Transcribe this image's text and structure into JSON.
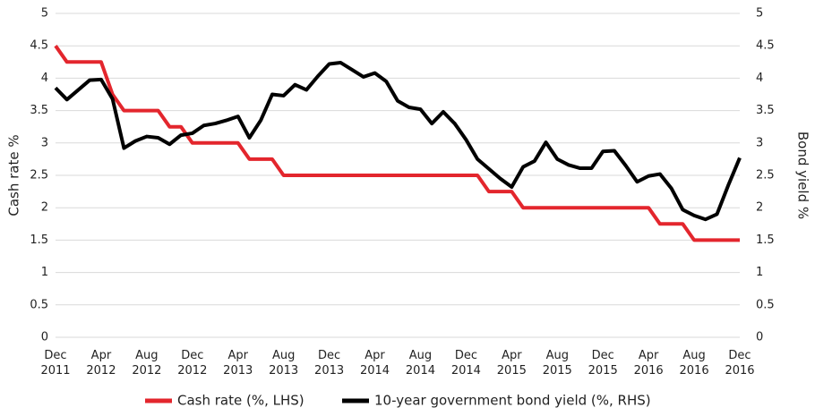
{
  "chart_data": {
    "type": "line",
    "y_label": "Cash rate %",
    "y2_label": "Bond yield %",
    "categories": [
      "Dec 2011",
      null,
      null,
      null,
      "Apr 2012",
      null,
      null,
      null,
      "Aug 2012",
      null,
      null,
      null,
      "Dec 2012",
      null,
      null,
      null,
      "Apr 2013",
      null,
      null,
      null,
      "Aug 2013",
      null,
      null,
      null,
      "Dec 2013",
      null,
      null,
      null,
      "Apr 2014",
      null,
      null,
      null,
      "Aug 2014",
      null,
      null,
      null,
      "Dec 2014",
      null,
      null,
      null,
      "Apr 2015",
      null,
      null,
      null,
      "Aug 2015",
      null,
      null,
      null,
      "Dec 2015",
      null,
      null,
      null,
      "Apr 2016",
      null,
      null,
      null,
      "Aug 2016",
      null,
      null,
      null,
      "Dec 2016"
    ],
    "series": [
      {
        "name": "Cash rate (%, LHS)",
        "color": "#e3262d",
        "axis": "y",
        "values": [
          4.5,
          4.25,
          4.25,
          4.25,
          4.25,
          3.75,
          3.5,
          3.5,
          3.5,
          3.5,
          3.25,
          3.25,
          3.0,
          3.0,
          3.0,
          3.0,
          3.0,
          2.75,
          2.75,
          2.75,
          2.5,
          2.5,
          2.5,
          2.5,
          2.5,
          2.5,
          2.5,
          2.5,
          2.5,
          2.5,
          2.5,
          2.5,
          2.5,
          2.5,
          2.5,
          2.5,
          2.5,
          2.5,
          2.25,
          2.25,
          2.25,
          2.0,
          2.0,
          2.0,
          2.0,
          2.0,
          2.0,
          2.0,
          2.0,
          2.0,
          2.0,
          2.0,
          2.0,
          1.75,
          1.75,
          1.75,
          1.5,
          1.5,
          1.5,
          1.5,
          1.5
        ]
      },
      {
        "name": "10-year government bond yield (%, RHS)",
        "color": "#000000",
        "axis": "y2",
        "values": [
          3.85,
          3.67,
          3.82,
          3.97,
          3.98,
          3.68,
          2.92,
          3.03,
          3.1,
          3.08,
          2.98,
          3.12,
          3.15,
          3.27,
          3.3,
          3.35,
          3.41,
          3.08,
          3.35,
          3.75,
          3.73,
          3.9,
          3.82,
          4.03,
          4.22,
          4.24,
          4.13,
          4.02,
          4.08,
          3.95,
          3.65,
          3.55,
          3.52,
          3.3,
          3.48,
          3.3,
          3.05,
          2.75,
          2.6,
          2.45,
          2.32,
          2.63,
          2.72,
          3.01,
          2.75,
          2.66,
          2.61,
          2.61,
          2.87,
          2.88,
          2.65,
          2.4,
          2.49,
          2.52,
          2.3,
          1.97,
          1.88,
          1.82,
          1.9,
          2.35,
          2.77
        ]
      }
    ],
    "ylim": [
      0,
      5
    ],
    "yticks": [
      0,
      0.5,
      1,
      1.5,
      2,
      2.5,
      3,
      3.5,
      4,
      4.5,
      5
    ],
    "y2lim": [
      0,
      5
    ],
    "y2ticks": [
      0,
      0.5,
      1,
      1.5,
      2,
      2.5,
      3,
      3.5,
      4,
      4.5,
      5
    ],
    "grid": true,
    "legend": "bottom"
  }
}
